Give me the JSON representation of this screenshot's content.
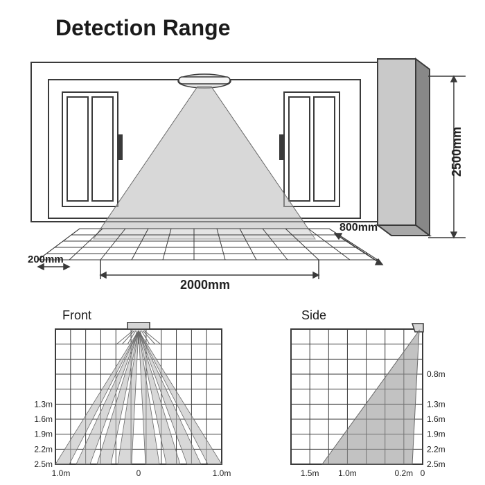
{
  "title": "Detection Range",
  "title_fontsize": 32,
  "colors": {
    "stroke": "#3a3a3a",
    "stroke_light": "#6a6a6a",
    "beam_fill": "#b8b8b8",
    "beam_fill_dark": "#9a9a9a",
    "beam_opacity": 0.55,
    "bg": "#ffffff",
    "wall": "#f0f0f0",
    "pillar": "#c9c9c9",
    "pillar_dark": "#888888",
    "text": "#222222"
  },
  "perspective": {
    "dimensions": {
      "width_mm": "2000mm",
      "depth_mm": "800mm",
      "offset_mm": "200mm",
      "height_mm": "2500mm"
    }
  },
  "front": {
    "label": "Front",
    "y_ticks": [
      "1.3m",
      "1.6m",
      "1.9m",
      "2.2m",
      "2.5m"
    ],
    "x_ticks_left": "1.0m",
    "x_ticks_mid": "0",
    "x_ticks_right": "1.0m",
    "grid_cols": 11,
    "grid_rows": 9,
    "beams": [
      {
        "dx1": -120,
        "dx2": -100
      },
      {
        "dx1": -90,
        "dx2": -70
      },
      {
        "dx1": -60,
        "dx2": -40
      },
      {
        "dx1": -30,
        "dx2": -10
      },
      {
        "dx1": 10,
        "dx2": 30
      },
      {
        "dx1": 40,
        "dx2": 60
      },
      {
        "dx1": 70,
        "dx2": 90
      },
      {
        "dx1": 100,
        "dx2": 120
      }
    ]
  },
  "side": {
    "label": "Side",
    "y_ticks": [
      "0.8m",
      "1.3m",
      "1.6m",
      "1.9m",
      "2.2m",
      "2.5m"
    ],
    "x_ticks": [
      "1.5m",
      "1.0m",
      "0.2m",
      "0"
    ],
    "grid_cols": 7,
    "grid_rows": 9
  },
  "label_fontsize": 13,
  "subtitle_fontsize": 18
}
